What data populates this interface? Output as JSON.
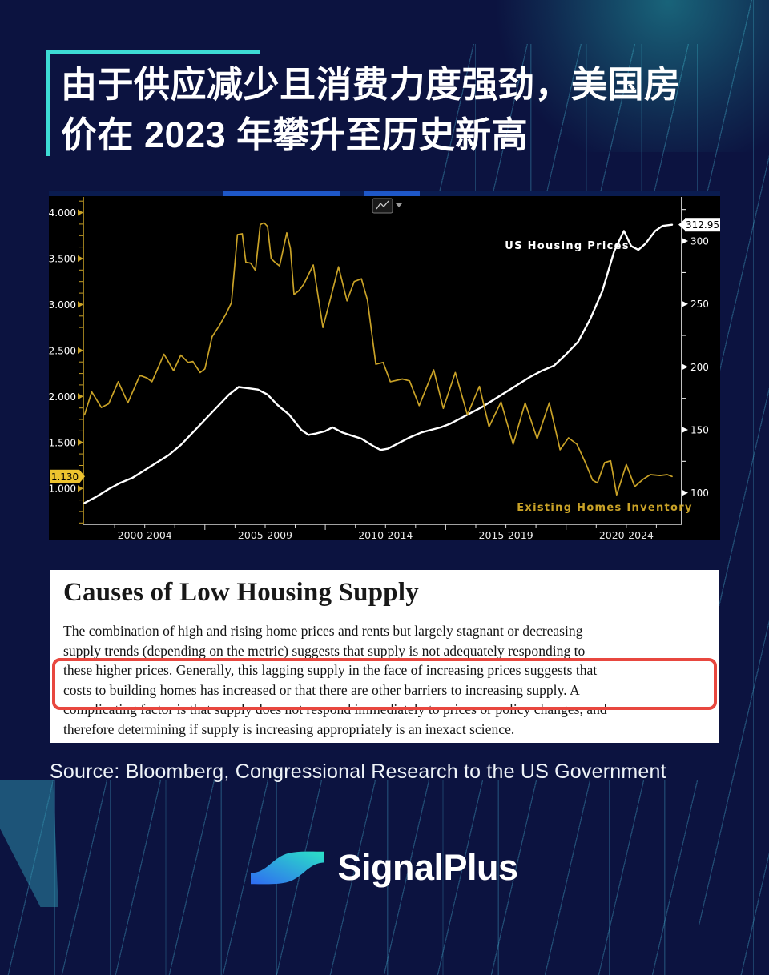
{
  "page": {
    "background": "#0c1340",
    "accent_teal": "#3ddbd4"
  },
  "header": {
    "title_lines": [
      "由于供应减少且消费力度强劲，美国房",
      "价在 2023 年攀升至历史新高"
    ]
  },
  "chart_data": {
    "type": "line",
    "background": "#000000",
    "toolbar_icon": "line-chart-icon",
    "x_axis": {
      "range": [
        1999.95,
        2024.8
      ],
      "bucket_labels": [
        "2000-2004",
        "2005-2009",
        "2010-2014",
        "2015-2019",
        "2020-2024"
      ],
      "bucket_centers": [
        2002.5,
        2007.5,
        2012.5,
        2017.5,
        2022.5
      ]
    },
    "left_axis": {
      "color": "#c9a227",
      "range": [
        0.61,
        4.17
      ],
      "tick_values": [
        4.0,
        3.5,
        3.0,
        2.5,
        2.0,
        1.5,
        1.0
      ],
      "tick_labels": [
        "4.000",
        "3.500",
        "3.000",
        "2.500",
        "2.000",
        "1.500",
        "1.000"
      ],
      "last_price": {
        "text": "1.130",
        "value": 1.13,
        "bg": "#edc32f"
      }
    },
    "right_axis": {
      "color": "#ffffff",
      "range": [
        75,
        335
      ],
      "tick_values": [
        300,
        250,
        200,
        150,
        100
      ],
      "minor_values": [
        325,
        275,
        225,
        175,
        125
      ],
      "last_price": {
        "text": "312.95",
        "value": 312.95,
        "bg": "#ffffff"
      }
    },
    "series": [
      {
        "name": "US Housing Prices",
        "color": "#ffffff",
        "axis": "right",
        "points": [
          [
            2000.0,
            92
          ],
          [
            2000.5,
            97
          ],
          [
            2001.0,
            103
          ],
          [
            2001.5,
            108
          ],
          [
            2002.0,
            112
          ],
          [
            2002.5,
            118
          ],
          [
            2003.0,
            124
          ],
          [
            2003.5,
            130
          ],
          [
            2004.0,
            138
          ],
          [
            2004.5,
            148
          ],
          [
            2005.0,
            158
          ],
          [
            2005.5,
            168
          ],
          [
            2006.0,
            178
          ],
          [
            2006.4,
            184
          ],
          [
            2006.8,
            183
          ],
          [
            2007.2,
            182
          ],
          [
            2007.6,
            178
          ],
          [
            2008.0,
            170
          ],
          [
            2008.5,
            162
          ],
          [
            2009.0,
            150
          ],
          [
            2009.3,
            146
          ],
          [
            2009.6,
            147
          ],
          [
            2010.0,
            149
          ],
          [
            2010.3,
            152
          ],
          [
            2010.7,
            148
          ],
          [
            2011.0,
            146
          ],
          [
            2011.5,
            143
          ],
          [
            2012.0,
            137
          ],
          [
            2012.3,
            134
          ],
          [
            2012.6,
            135
          ],
          [
            2013.0,
            139
          ],
          [
            2013.5,
            144
          ],
          [
            2014.0,
            148
          ],
          [
            2014.4,
            150
          ],
          [
            2014.8,
            152
          ],
          [
            2015.2,
            155
          ],
          [
            2015.6,
            159
          ],
          [
            2016.0,
            163
          ],
          [
            2016.5,
            168
          ],
          [
            2017.0,
            174
          ],
          [
            2017.5,
            180
          ],
          [
            2018.0,
            186
          ],
          [
            2018.5,
            192
          ],
          [
            2019.0,
            197
          ],
          [
            2019.5,
            201
          ],
          [
            2020.0,
            210
          ],
          [
            2020.5,
            220
          ],
          [
            2021.0,
            238
          ],
          [
            2021.5,
            260
          ],
          [
            2022.0,
            292
          ],
          [
            2022.4,
            308
          ],
          [
            2022.7,
            296
          ],
          [
            2023.0,
            293
          ],
          [
            2023.3,
            298
          ],
          [
            2023.7,
            308
          ],
          [
            2024.0,
            312
          ],
          [
            2024.4,
            312.95
          ]
        ]
      },
      {
        "name": "Existing Homes Inventory",
        "color": "#c9a227",
        "axis": "left",
        "points": [
          [
            2000.0,
            1.8
          ],
          [
            2000.3,
            2.05
          ],
          [
            2000.7,
            1.88
          ],
          [
            2001.0,
            1.92
          ],
          [
            2001.4,
            2.16
          ],
          [
            2001.8,
            1.93
          ],
          [
            2002.3,
            2.23
          ],
          [
            2002.6,
            2.2
          ],
          [
            2002.8,
            2.16
          ],
          [
            2003.3,
            2.46
          ],
          [
            2003.7,
            2.28
          ],
          [
            2004.0,
            2.45
          ],
          [
            2004.3,
            2.37
          ],
          [
            2004.5,
            2.38
          ],
          [
            2004.8,
            2.26
          ],
          [
            2005.0,
            2.3
          ],
          [
            2005.3,
            2.65
          ],
          [
            2005.6,
            2.77
          ],
          [
            2005.9,
            2.91
          ],
          [
            2006.1,
            3.02
          ],
          [
            2006.35,
            3.76
          ],
          [
            2006.55,
            3.77
          ],
          [
            2006.7,
            3.46
          ],
          [
            2006.9,
            3.45
          ],
          [
            2007.1,
            3.37
          ],
          [
            2007.3,
            3.87
          ],
          [
            2007.45,
            3.89
          ],
          [
            2007.6,
            3.85
          ],
          [
            2007.75,
            3.5
          ],
          [
            2007.95,
            3.45
          ],
          [
            2008.1,
            3.42
          ],
          [
            2008.4,
            3.78
          ],
          [
            2008.55,
            3.61
          ],
          [
            2008.7,
            3.11
          ],
          [
            2008.9,
            3.15
          ],
          [
            2009.1,
            3.22
          ],
          [
            2009.5,
            3.43
          ],
          [
            2009.9,
            2.75
          ],
          [
            2010.2,
            3.05
          ],
          [
            2010.55,
            3.41
          ],
          [
            2010.9,
            3.04
          ],
          [
            2011.2,
            3.25
          ],
          [
            2011.5,
            3.28
          ],
          [
            2011.75,
            3.05
          ],
          [
            2012.1,
            2.35
          ],
          [
            2012.4,
            2.37
          ],
          [
            2012.7,
            2.16
          ],
          [
            2013.2,
            2.19
          ],
          [
            2013.5,
            2.17
          ],
          [
            2013.9,
            1.9
          ],
          [
            2014.5,
            2.29
          ],
          [
            2014.9,
            1.87
          ],
          [
            2015.4,
            2.26
          ],
          [
            2015.9,
            1.8
          ],
          [
            2016.4,
            2.11
          ],
          [
            2016.8,
            1.67
          ],
          [
            2017.3,
            1.94
          ],
          [
            2017.8,
            1.48
          ],
          [
            2018.3,
            1.93
          ],
          [
            2018.8,
            1.54
          ],
          [
            2019.3,
            1.93
          ],
          [
            2019.75,
            1.42
          ],
          [
            2020.1,
            1.55
          ],
          [
            2020.45,
            1.48
          ],
          [
            2020.8,
            1.28
          ],
          [
            2021.1,
            1.09
          ],
          [
            2021.3,
            1.06
          ],
          [
            2021.6,
            1.28
          ],
          [
            2021.85,
            1.3
          ],
          [
            2022.1,
            0.93
          ],
          [
            2022.5,
            1.26
          ],
          [
            2022.85,
            1.02
          ],
          [
            2023.2,
            1.1
          ],
          [
            2023.5,
            1.15
          ],
          [
            2023.9,
            1.14
          ],
          [
            2024.2,
            1.15
          ],
          [
            2024.4,
            1.13
          ]
        ]
      }
    ]
  },
  "document": {
    "title": "Causes of Low Housing Supply",
    "body_lines": [
      "The combination of high and rising home prices and rents but largely stagnant or decreasing",
      "supply trends (depending on the metric) suggests that supply is not adequately responding to",
      "these higher prices. Generally, this lagging supply in the face of increasing prices suggests that",
      "costs to building homes has increased or that there are other barriers to increasing supply. A",
      "complicating factor is that supply does not respond immediately to prices or policy changes, and",
      "therefore determining if supply is increasing appropriately is an inexact science."
    ],
    "highlighted_lines": [
      3,
      4
    ],
    "highlight_color": "#e8473f"
  },
  "source_line": "Source: Bloomberg, Congressional Research to the US Government",
  "logo": {
    "text": "SignalPlus",
    "gradient": [
      "#2f6bf2",
      "#2be3c6"
    ]
  }
}
